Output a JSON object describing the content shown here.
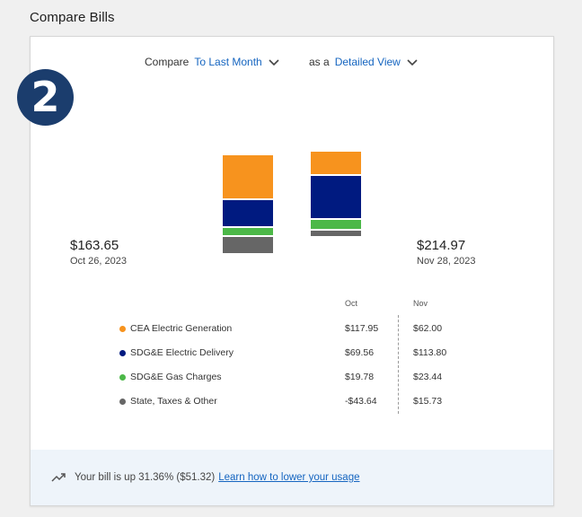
{
  "page_title": "Compare Bills",
  "step_badge": "2",
  "controls": {
    "compare_label": "Compare",
    "compare_value": "To Last Month",
    "view_label": "as a",
    "view_value": "Detailed View"
  },
  "bills": [
    {
      "amount": "$163.65",
      "date": "Oct 26, 2023"
    },
    {
      "amount": "$214.97",
      "date": "Nov 28, 2023"
    }
  ],
  "chart_data": {
    "type": "bar",
    "stacked": true,
    "categories": [
      "Oct",
      "Nov"
    ],
    "series": [
      {
        "name": "CEA Electric Generation",
        "color": "#f7931e",
        "values": [
          117.95,
          62.0
        ]
      },
      {
        "name": "SDG&E Electric Delivery",
        "color": "#001a80",
        "values": [
          69.56,
          113.8
        ]
      },
      {
        "name": "SDG&E Gas Charges",
        "color": "#4cb848",
        "values": [
          19.78,
          23.44
        ]
      },
      {
        "name": "State, Taxes & Other",
        "color": "#666666",
        "values": [
          -43.64,
          15.73
        ]
      }
    ]
  },
  "table": {
    "col_oct": "Oct",
    "col_nov": "Nov",
    "rows": [
      {
        "label": "CEA Electric Generation",
        "color": "#f7931e",
        "oct": "$117.95",
        "nov": "$62.00"
      },
      {
        "label": "SDG&E Electric Delivery",
        "color": "#001a80",
        "oct": "$69.56",
        "nov": "$113.80"
      },
      {
        "label": "SDG&E Gas Charges",
        "color": "#4cb848",
        "oct": "$19.78",
        "nov": "$23.44"
      },
      {
        "label": "State, Taxes & Other",
        "color": "#666666",
        "oct": "-$43.64",
        "nov": "$15.73"
      }
    ]
  },
  "footer": {
    "message": "Your bill is up 31.36% ($51.32)",
    "link_text": "Learn how to lower your usage"
  }
}
